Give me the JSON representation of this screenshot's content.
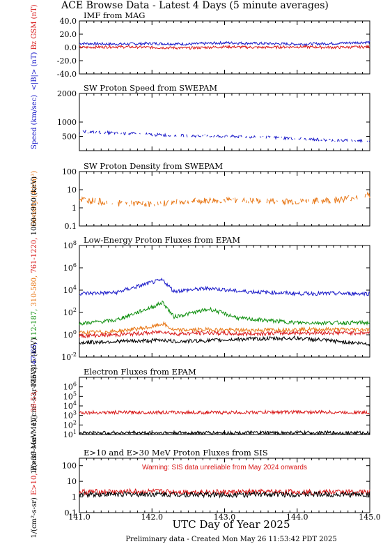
{
  "title": "ACE Browse Data - Latest 4 Days (5 minute averages)",
  "footer": "Preliminary data - Created Mon May 26 11:53:42 PDT 2025",
  "xaxis": {
    "label": "UTC Day of Year 2025",
    "range": [
      141.0,
      145.0
    ],
    "ticks": [
      "141.0",
      "142.0",
      "143.0",
      "144.0",
      "145.0"
    ]
  },
  "colors": {
    "blue": "#1818c8",
    "red": "#d81818",
    "green": "#109010",
    "orange": "#e87818",
    "black": "#000000"
  },
  "chart_data": [
    {
      "type": "line",
      "title": "IMF from MAG",
      "ylabel_parts": [
        {
          "text": "<|B|> (nT)",
          "color": "blue"
        },
        {
          "text": "Bz GSM (nT)",
          "color": "red"
        }
      ],
      "ylim": [
        -40,
        40
      ],
      "yticks": [
        "40.0",
        "20.0",
        "0.0",
        "-20.0",
        "-40.0"
      ],
      "series": [
        {
          "name": "<|B|>",
          "color": "blue",
          "x": [
            141.0,
            141.5,
            142.0,
            142.5,
            143.0,
            143.5,
            144.0,
            144.5,
            145.0
          ],
          "y": [
            6,
            5,
            6,
            5,
            7,
            6,
            5,
            6,
            8
          ]
        },
        {
          "name": "Bz GSM",
          "color": "red",
          "x": [
            141.0,
            141.5,
            142.0,
            142.5,
            143.0,
            143.5,
            144.0,
            144.5,
            145.0
          ],
          "y": [
            0,
            1,
            0,
            -1,
            1,
            0,
            1,
            0,
            1
          ]
        }
      ]
    },
    {
      "type": "scatter",
      "title": "SW Proton Speed from SWEPAM",
      "ylabel_parts": [
        {
          "text": "Speed (km/sec)",
          "color": "blue"
        }
      ],
      "ylim": [
        0,
        2000
      ],
      "yticks": [
        "2000",
        "1000",
        "500"
      ],
      "series": [
        {
          "name": "Speed",
          "color": "blue",
          "x": [
            141.0,
            141.5,
            142.0,
            142.5,
            143.0,
            143.5,
            144.0,
            144.5,
            145.0
          ],
          "y": [
            660,
            620,
            560,
            520,
            500,
            480,
            420,
            360,
            340
          ]
        }
      ]
    },
    {
      "type": "scatter",
      "title": "SW Proton Density from SWEPAM",
      "ylabel_parts": [
        {
          "text": "Density (#/cm³)",
          "color": "orange"
        }
      ],
      "yscale": "log",
      "ylim": [
        0.1,
        100
      ],
      "yticks": [
        "100",
        "10",
        "1",
        "0.1"
      ],
      "series": [
        {
          "name": "Density",
          "color": "orange",
          "x": [
            141.0,
            141.5,
            142.0,
            142.5,
            143.0,
            143.5,
            144.0,
            144.5,
            145.0
          ],
          "y": [
            3,
            1.8,
            1.6,
            2.3,
            2.6,
            2.4,
            2.2,
            2.6,
            5
          ]
        }
      ]
    },
    {
      "type": "line",
      "title": "Low-Energy Proton Fluxes from EPAM",
      "ylabel_parts": [
        {
          "text": "1/(cm²-s-sr-MeV)",
          "color": "black"
        },
        {
          "text": "47-65,",
          "color": "blue"
        },
        {
          "text": "112-187,",
          "color": "green"
        },
        {
          "text": "310-580,",
          "color": "orange"
        },
        {
          "text": "761-1220,",
          "color": "red"
        },
        {
          "text": "1060-1910 (keV)",
          "color": "black"
        }
      ],
      "yscale": "log",
      "ylim": [
        0.01,
        100000000
      ],
      "yticks": [
        "10^8",
        "10^6",
        "10^4",
        "10^2",
        "10^0",
        "10^-2"
      ],
      "series": [
        {
          "name": "47-65",
          "color": "blue",
          "x": [
            141.0,
            141.5,
            142.0,
            142.15,
            142.3,
            142.8,
            143.2,
            144.0,
            145.0
          ],
          "y": [
            5000,
            6000,
            50000,
            80000,
            8000,
            15000,
            8000,
            5000,
            5000
          ]
        },
        {
          "name": "112-187",
          "color": "green",
          "x": [
            141.0,
            141.5,
            142.0,
            142.15,
            142.3,
            142.8,
            143.2,
            144.0,
            145.0
          ],
          "y": [
            10,
            20,
            300,
            800,
            40,
            200,
            30,
            12,
            12
          ]
        },
        {
          "name": "310-580",
          "color": "orange",
          "x": [
            141.0,
            141.5,
            142.0,
            142.15,
            142.3,
            142.8,
            143.2,
            144.0,
            145.0
          ],
          "y": [
            1.5,
            2,
            5,
            10,
            2.5,
            3,
            2.5,
            3,
            3
          ]
        },
        {
          "name": "761-1220",
          "color": "red",
          "x": [
            141.0,
            141.5,
            142.0,
            142.15,
            142.3,
            142.8,
            143.2,
            144.0,
            145.0
          ],
          "y": [
            0.8,
            1,
            1.5,
            2,
            1.2,
            1.5,
            1.2,
            1.5,
            1.5
          ]
        },
        {
          "name": "1060-1910",
          "color": "black",
          "x": [
            141.0,
            141.5,
            142.0,
            142.15,
            142.3,
            142.8,
            143.2,
            144.0,
            145.0
          ],
          "y": [
            0.2,
            0.25,
            0.3,
            0.35,
            0.25,
            0.3,
            0.4,
            0.5,
            0.15
          ]
        }
      ]
    },
    {
      "type": "line",
      "title": "Electron Fluxes from EPAM",
      "ylabel_parts": [
        {
          "text": "1/(cm²-s-sr-MeV)",
          "color": "black"
        },
        {
          "text": "38-53,",
          "color": "red"
        },
        {
          "text": "175-315 (keV)",
          "color": "black"
        }
      ],
      "yscale": "log",
      "ylim": [
        10,
        10000000
      ],
      "yticks": [
        "10^6",
        "10^5",
        "10^4",
        "10^3",
        "10^2",
        "10^1"
      ],
      "series": [
        {
          "name": "38-53",
          "color": "red",
          "x": [
            141.0,
            142.0,
            143.0,
            144.0,
            145.0
          ],
          "y": [
            2000,
            2100,
            2000,
            2300,
            2000
          ]
        },
        {
          "name": "175-315",
          "color": "black",
          "x": [
            141.0,
            142.0,
            143.0,
            144.0,
            145.0
          ],
          "y": [
            15,
            15,
            15,
            15,
            15
          ]
        }
      ]
    },
    {
      "type": "line",
      "title": "E>10 and E>30 MeV Proton Fluxes from SIS",
      "warning": "Warning: SIS data unreliable from May 2024 onwards",
      "ylabel_parts": [
        {
          "text": "1/(cm²-s-sr)",
          "color": "black"
        },
        {
          "text": "E>10,",
          "color": "red"
        },
        {
          "text": "E>30 MeV",
          "color": "black"
        }
      ],
      "yscale": "log",
      "ylim": [
        0.1,
        300
      ],
      "yticks": [
        "100",
        "10",
        "1",
        "0.1"
      ],
      "series": [
        {
          "name": "E>10",
          "color": "red",
          "x": [
            141.0,
            142.0,
            143.0,
            144.0,
            145.0
          ],
          "y": [
            2.1,
            2.2,
            2.0,
            2.1,
            2.0
          ]
        },
        {
          "name": "E>30",
          "color": "black",
          "x": [
            141.0,
            142.0,
            143.0,
            144.0,
            145.0
          ],
          "y": [
            1.5,
            1.5,
            1.4,
            1.5,
            1.4
          ]
        }
      ]
    }
  ]
}
